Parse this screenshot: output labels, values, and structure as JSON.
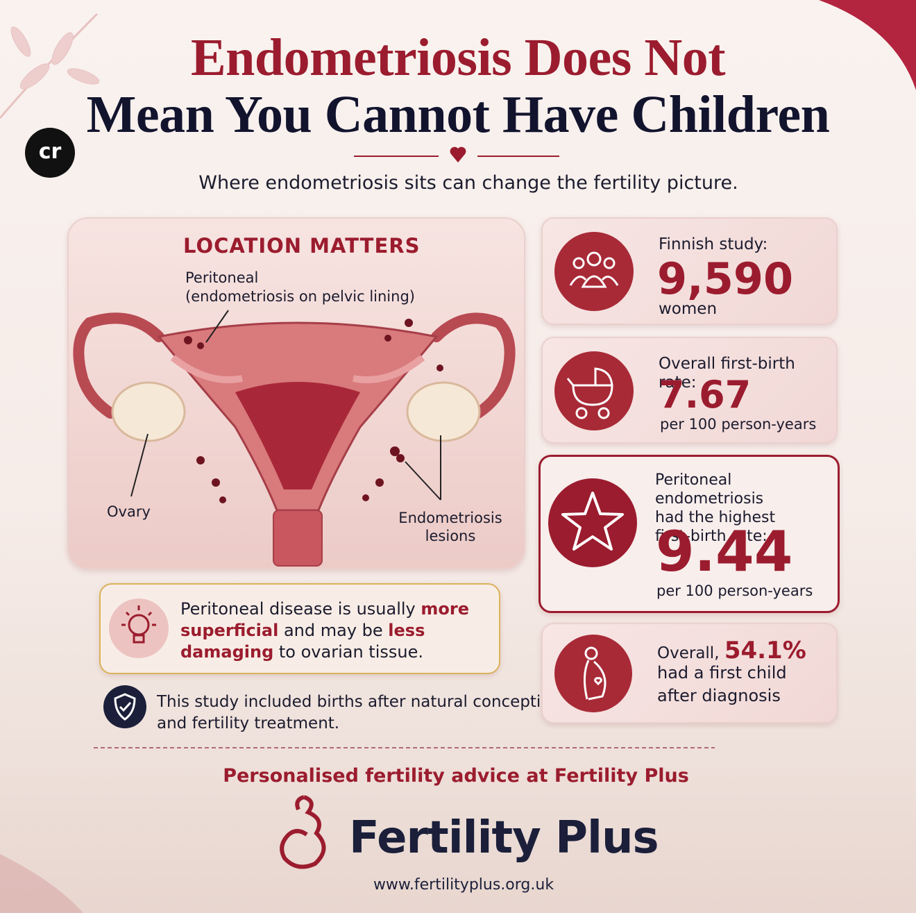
{
  "header": {
    "badge": "cr",
    "title_line1": "Endometriosis Does Not",
    "title_line2": "Mean You Cannot Have Children",
    "subtitle": "Where endometriosis sits can change the fertility picture."
  },
  "location_panel": {
    "title": "LOCATION MATTERS",
    "peritoneal_label": "Peritoneal",
    "peritoneal_note": "(endometriosis on pelvic lining)",
    "ovary_label": "Ovary",
    "lesions_label": [
      "Endometriosis",
      "lesions"
    ]
  },
  "tip": {
    "parts": [
      "Peritoneal disease is usually ",
      "more superficial",
      " and may be ",
      "less damaging",
      " to ovarian tissue."
    ]
  },
  "note": [
    "This study included births after natural conception",
    "and fertility treatment."
  ],
  "stats": [
    {
      "label": "Finnish study:",
      "value": "9,590",
      "unit": "women"
    },
    {
      "label": "Overall first-birth rate:",
      "value": "7.67",
      "unit": "per 100 person-years"
    },
    {
      "label": [
        "Peritoneal endometriosis",
        "had the highest",
        "first-birth rate:"
      ],
      "value": "9.44",
      "unit": "per 100 person-years"
    },
    {
      "label": "Overall,",
      "value": "54.1%",
      "unit": [
        "had a first child",
        "after diagnosis"
      ]
    }
  ],
  "footer": {
    "tagline": "Personalised fertility advice at Fertility Plus",
    "brand": "Fertility Plus",
    "url": "www.fertilityplus.org.uk"
  }
}
